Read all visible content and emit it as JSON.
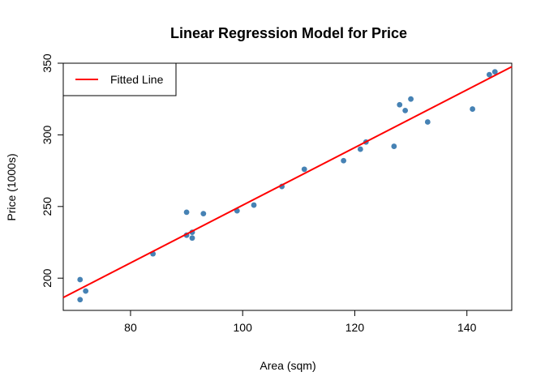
{
  "chart_data": {
    "type": "scatter",
    "title": "Linear Regression Model for Price",
    "xlabel": "Area (sqm)",
    "ylabel": "Price (1000s)",
    "xlim": [
      68,
      148
    ],
    "ylim": [
      177.5,
      350
    ],
    "xticks": [
      80,
      100,
      120,
      140
    ],
    "yticks": [
      200,
      250,
      300,
      350
    ],
    "grid": false,
    "legend": {
      "position": "top-left",
      "entries": [
        "Fitted Line"
      ]
    },
    "series": [
      {
        "kind": "points",
        "color": "#4682B4",
        "points": [
          [
            71,
            199
          ],
          [
            71,
            185
          ],
          [
            72,
            191
          ],
          [
            84,
            217
          ],
          [
            90,
            246
          ],
          [
            90,
            230
          ],
          [
            91,
            232
          ],
          [
            91,
            228
          ],
          [
            93,
            245
          ],
          [
            99,
            247
          ],
          [
            102,
            251
          ],
          [
            107,
            264
          ],
          [
            111,
            276
          ],
          [
            118,
            282
          ],
          [
            121,
            290
          ],
          [
            122,
            295
          ],
          [
            127,
            292
          ],
          [
            128,
            321
          ],
          [
            129,
            317
          ],
          [
            130,
            325
          ],
          [
            133,
            309
          ],
          [
            141,
            318
          ],
          [
            144,
            342
          ],
          [
            145,
            344
          ]
        ]
      },
      {
        "kind": "line",
        "name": "Fitted Line",
        "color": "#FF0000",
        "points": [
          [
            68,
            186.5
          ],
          [
            148,
            347.5
          ]
        ]
      }
    ]
  }
}
